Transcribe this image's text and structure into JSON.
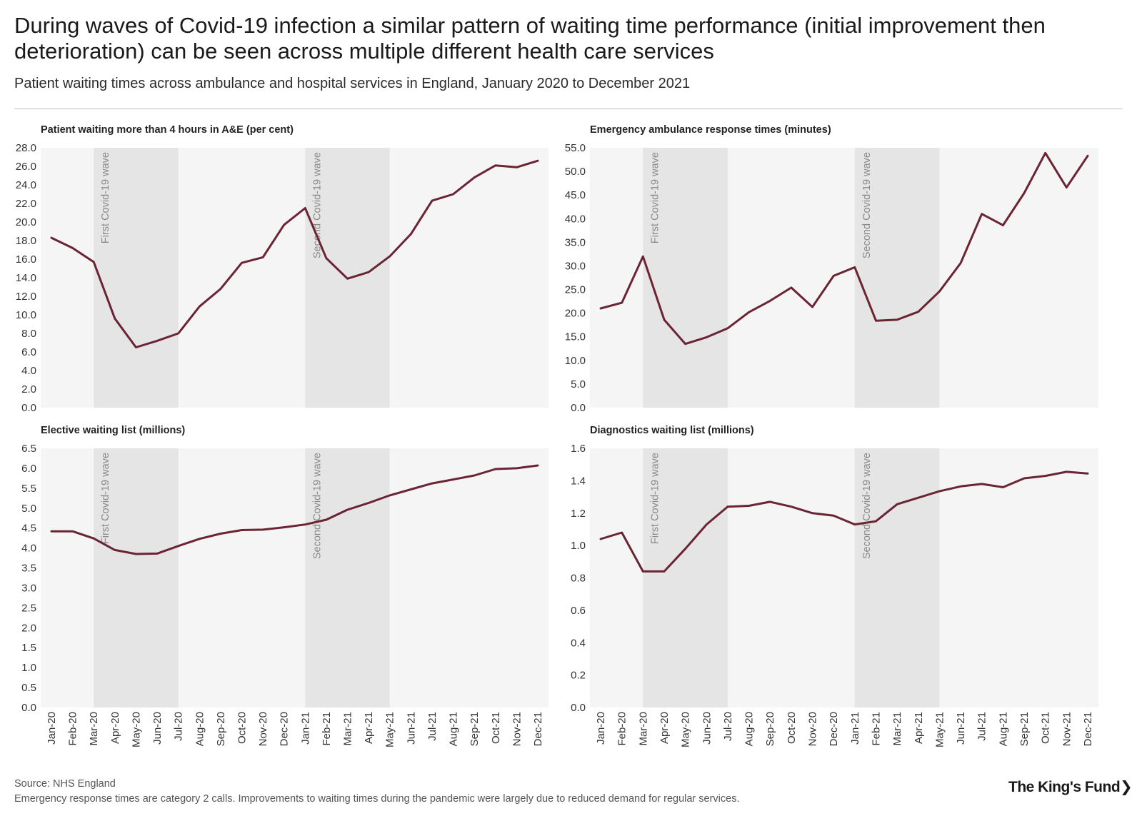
{
  "title": "During waves of Covid-19 infection a similar pattern of waiting time performance (initial improvement then deterioration) can be seen across multiple different health care services",
  "subtitle": "Patient waiting times across ambulance and hospital services in England, January 2020 to December 2021",
  "colors": {
    "line": "#6b2434",
    "plot_bg": "#f5f5f5",
    "wave_band": "#e5e5e5",
    "wave_text": "#8a8a8a",
    "axis_text": "#333333"
  },
  "wave_labels": {
    "first": "First Covid-19 wave",
    "second": "Second Covid-19 wave"
  },
  "chart_data": [
    {
      "type": "line",
      "title": "Patient waiting more than 4 hours in A&E (per cent)",
      "categories": [
        "Jan-20",
        "Feb-20",
        "Mar-20",
        "Apr-20",
        "May-20",
        "Jun-20",
        "Jul-20",
        "Aug-20",
        "Sep-20",
        "Oct-20",
        "Nov-20",
        "Dec-20",
        "Jan-21",
        "Feb-21",
        "Mar-21",
        "Apr-21",
        "May-21",
        "Jun-21",
        "Jul-21",
        "Aug-21",
        "Sep-21",
        "Oct-21",
        "Nov-21",
        "Dec-21"
      ],
      "values": [
        18.3,
        17.2,
        15.7,
        9.6,
        6.5,
        7.2,
        8.0,
        10.9,
        12.8,
        15.6,
        16.2,
        19.7,
        21.5,
        16.1,
        13.9,
        14.6,
        16.3,
        18.7,
        22.3,
        23.0,
        24.8,
        26.1,
        25.9,
        26.6
      ],
      "ylim": [
        0,
        28
      ],
      "yticks": [
        "0.0",
        "2.0",
        "4.0",
        "6.0",
        "8.0",
        "10.0",
        "12.0",
        "14.0",
        "16.0",
        "18.0",
        "20.0",
        "22.0",
        "24.0",
        "26.0",
        "28.0"
      ],
      "waves": [
        {
          "start": "Mar-20",
          "end": "Jul-20"
        },
        {
          "start": "Jan-21",
          "end": "May-21"
        }
      ],
      "show_x_labels": false
    },
    {
      "type": "line",
      "title": "Emergency ambulance response times (minutes)",
      "categories": [
        "Jan-20",
        "Feb-20",
        "Mar-20",
        "Apr-20",
        "May-20",
        "Jun-20",
        "Jul-20",
        "Aug-20",
        "Sep-20",
        "Oct-20",
        "Nov-20",
        "Dec-20",
        "Jan-21",
        "Feb-21",
        "Mar-21",
        "Apr-21",
        "May-21",
        "Jun-21",
        "Jul-21",
        "Aug-21",
        "Sep-21",
        "Oct-21",
        "Nov-21",
        "Dec-21"
      ],
      "values": [
        21.0,
        22.2,
        32.0,
        18.6,
        13.5,
        14.9,
        16.8,
        20.2,
        22.6,
        25.4,
        21.3,
        27.9,
        29.7,
        18.4,
        18.6,
        20.3,
        24.6,
        30.6,
        41.0,
        38.6,
        45.4,
        53.9,
        46.6,
        53.3
      ],
      "ylim": [
        0,
        55
      ],
      "yticks": [
        "0.0",
        "5.0",
        "10.0",
        "15.0",
        "20.0",
        "25.0",
        "30.0",
        "35.0",
        "40.0",
        "45.0",
        "50.0",
        "55.0"
      ],
      "waves": [
        {
          "start": "Mar-20",
          "end": "Jul-20"
        },
        {
          "start": "Jan-21",
          "end": "May-21"
        }
      ],
      "show_x_labels": false
    },
    {
      "type": "line",
      "title": "Elective waiting list (millions)",
      "categories": [
        "Jan-20",
        "Feb-20",
        "Mar-20",
        "Apr-20",
        "May-20",
        "Jun-20",
        "Jul-20",
        "Aug-20",
        "Sep-20",
        "Oct-20",
        "Nov-20",
        "Dec-20",
        "Jan-21",
        "Feb-21",
        "Mar-21",
        "Apr-21",
        "May-21",
        "Jun-21",
        "Jul-21",
        "Aug-21",
        "Sep-21",
        "Oct-21",
        "Nov-21",
        "Dec-21"
      ],
      "values": [
        4.42,
        4.42,
        4.24,
        3.95,
        3.85,
        3.86,
        4.05,
        4.23,
        4.36,
        4.45,
        4.46,
        4.52,
        4.59,
        4.71,
        4.96,
        5.13,
        5.32,
        5.47,
        5.62,
        5.72,
        5.82,
        5.98,
        6.0,
        6.07
      ],
      "ylim": [
        0,
        6.5
      ],
      "yticks": [
        "0.0",
        "0.5",
        "1.0",
        "1.5",
        "2.0",
        "2.5",
        "3.0",
        "3.5",
        "4.0",
        "4.5",
        "5.0",
        "5.5",
        "6.0",
        "6.5"
      ],
      "waves": [
        {
          "start": "Mar-20",
          "end": "Jul-20"
        },
        {
          "start": "Jan-21",
          "end": "May-21"
        }
      ],
      "show_x_labels": true
    },
    {
      "type": "line",
      "title": "Diagnostics waiting list (millions)",
      "categories": [
        "Jan-20",
        "Feb-20",
        "Mar-20",
        "Apr-20",
        "May-20",
        "Jun-20",
        "Jul-20",
        "Aug-20",
        "Sep-20",
        "Oct-20",
        "Nov-20",
        "Dec-20",
        "Jan-21",
        "Feb-21",
        "Mar-21",
        "Apr-21",
        "May-21",
        "Jun-21",
        "Jul-21",
        "Aug-21",
        "Sep-21",
        "Oct-21",
        "Nov-21",
        "Dec-21"
      ],
      "values": [
        1.04,
        1.08,
        0.84,
        0.84,
        0.98,
        1.13,
        1.24,
        1.245,
        1.27,
        1.24,
        1.2,
        1.185,
        1.13,
        1.15,
        1.255,
        1.295,
        1.335,
        1.365,
        1.38,
        1.36,
        1.415,
        1.43,
        1.455,
        1.445
      ],
      "ylim": [
        0,
        1.6
      ],
      "yticks": [
        "0.0",
        "0.2",
        "0.4",
        "0.6",
        "0.8",
        "1.0",
        "1.2",
        "1.4",
        "1.6"
      ],
      "waves": [
        {
          "start": "Mar-20",
          "end": "Jul-20"
        },
        {
          "start": "Jan-21",
          "end": "May-21"
        }
      ],
      "show_x_labels": true
    }
  ],
  "footer": {
    "source": "Source: NHS England",
    "note": "Emergency response times are category 2 calls. Improvements to waiting times during the pandemic were largely due to reduced demand for regular services."
  },
  "logo": {
    "text": "The King's Fund",
    "chevron": "❯"
  }
}
